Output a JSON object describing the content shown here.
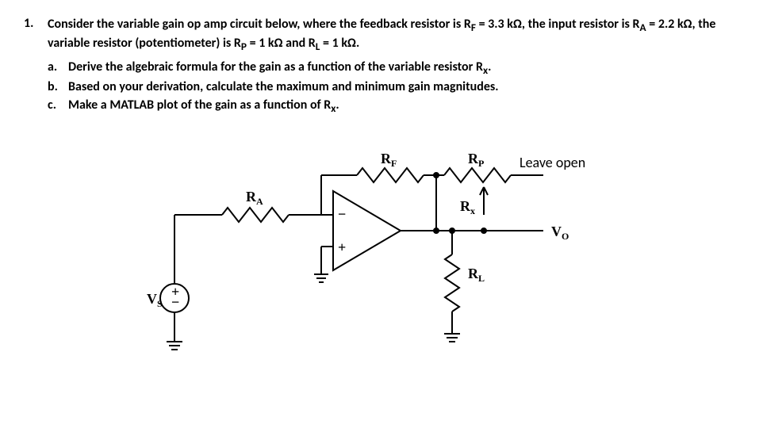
{
  "problem": {
    "number": "1.",
    "stem_html": "Consider the variable gain op amp circuit below, where the feedback resistor is R<sub>F</sub> = 3.3 kΩ, the input resistor is R<sub>A</sub> = 2.2 kΩ, the variable resistor (potentiometer) is R<sub>P</sub> = 1 kΩ and R<sub>L</sub> = 1 kΩ.",
    "subparts": [
      {
        "label": "a.",
        "text_html": "Derive the algebraic formula for the gain as a function of the variable resistor R<sub>x</sub>."
      },
      {
        "label": "b.",
        "text_html": "Based on your derivation, calculate the maximum and minimum gain magnitudes."
      },
      {
        "label": "c.",
        "text_html": "Make a MATLAB plot of the gain as a function of R<sub>x</sub>."
      }
    ]
  },
  "circuit": {
    "labels": {
      "RA": "R",
      "RA_sub": "A",
      "RF": "R",
      "RF_sub": "F",
      "RP": "R",
      "RP_sub": "P",
      "Rx": "R",
      "Rx_sub": "x",
      "RL": "R",
      "RL_sub": "L",
      "Vs": "V",
      "Vs_sub": "S",
      "Vo": "V",
      "Vo_sub": "O",
      "leave_open": "Leave open",
      "opamp_plus": "+",
      "opamp_minus": "−",
      "src_plus": "+",
      "src_minus": "−"
    },
    "style": {
      "stroke": "#000000",
      "stroke_width": 2,
      "bg": "#ffffff"
    }
  }
}
